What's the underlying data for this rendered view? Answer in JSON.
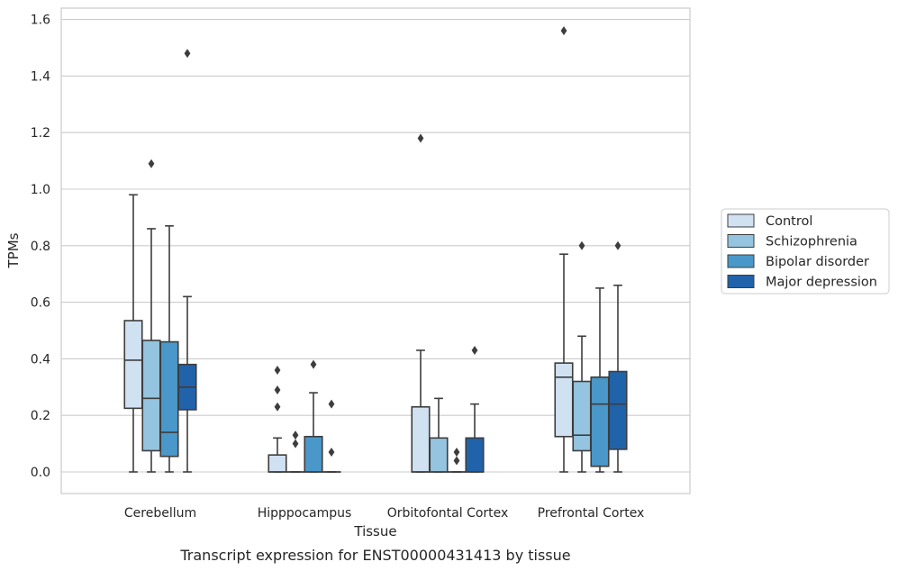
{
  "caption": "Transcript expression for ENST00000431413 by tissue",
  "chart_data": {
    "type": "boxplot",
    "xlabel": "Tissue",
    "ylabel": "TPMs",
    "ylim": [
      -0.075,
      1.645
    ],
    "yticks": [
      0.0,
      0.2,
      0.4,
      0.6,
      0.8,
      1.0,
      1.2,
      1.4,
      1.6
    ],
    "ytick_labels": [
      "0.0",
      "0.2",
      "0.4",
      "0.6",
      "0.8",
      "1.0",
      "1.2",
      "1.4",
      "1.6"
    ],
    "grid": "horizontal",
    "legend_position": "right, outside plot",
    "categories": [
      "Cerebellum",
      "Hipppocampus",
      "Orbitofontal Cortex",
      "Prefrontal Cortex"
    ],
    "series": [
      {
        "name": "Control",
        "color": "#d0e1f2",
        "boxes": [
          {
            "whislo": 0.0,
            "q1": 0.225,
            "med": 0.395,
            "q3": 0.535,
            "whishi": 0.98,
            "fliers": []
          },
          {
            "whislo": 0.0,
            "q1": 0.0,
            "med": 0.0,
            "q3": 0.06,
            "whishi": 0.12,
            "fliers": [
              0.23,
              0.29,
              0.36
            ]
          },
          {
            "whislo": 0.0,
            "q1": 0.0,
            "med": 0.0,
            "q3": 0.23,
            "whishi": 0.43,
            "fliers": [
              1.18
            ]
          },
          {
            "whislo": 0.0,
            "q1": 0.125,
            "med": 0.335,
            "q3": 0.385,
            "whishi": 0.77,
            "fliers": [
              1.56
            ]
          }
        ]
      },
      {
        "name": "Schizophrenia",
        "color": "#94c4df",
        "boxes": [
          {
            "whislo": 0.0,
            "q1": 0.075,
            "med": 0.26,
            "q3": 0.465,
            "whishi": 0.86,
            "fliers": [
              1.09
            ]
          },
          {
            "whislo": 0.0,
            "q1": 0.0,
            "med": 0.0,
            "q3": 0.0,
            "whishi": 0.0,
            "fliers": [
              0.1,
              0.13
            ]
          },
          {
            "whislo": 0.0,
            "q1": 0.0,
            "med": 0.0,
            "q3": 0.12,
            "whishi": 0.26,
            "fliers": []
          },
          {
            "whislo": 0.0,
            "q1": 0.075,
            "med": 0.13,
            "q3": 0.32,
            "whishi": 0.48,
            "fliers": [
              0.8
            ]
          }
        ]
      },
      {
        "name": "Bipolar disorder",
        "color": "#4a98c9",
        "boxes": [
          {
            "whislo": 0.0,
            "q1": 0.055,
            "med": 0.14,
            "q3": 0.46,
            "whishi": 0.87,
            "fliers": []
          },
          {
            "whislo": 0.0,
            "q1": 0.0,
            "med": 0.0,
            "q3": 0.125,
            "whishi": 0.28,
            "fliers": [
              0.38
            ]
          },
          {
            "whislo": 0.0,
            "q1": 0.0,
            "med": 0.0,
            "q3": 0.0,
            "whishi": 0.0,
            "fliers": [
              0.04,
              0.07
            ]
          },
          {
            "whislo": 0.0,
            "q1": 0.02,
            "med": 0.24,
            "q3": 0.335,
            "whishi": 0.65,
            "fliers": []
          }
        ]
      },
      {
        "name": "Major depression",
        "color": "#2163aa",
        "boxes": [
          {
            "whislo": 0.0,
            "q1": 0.22,
            "med": 0.3,
            "q3": 0.38,
            "whishi": 0.62,
            "fliers": [
              1.48
            ]
          },
          {
            "whislo": 0.0,
            "q1": 0.0,
            "med": 0.0,
            "q3": 0.0,
            "whishi": 0.0,
            "fliers": [
              0.07,
              0.24
            ]
          },
          {
            "whislo": 0.0,
            "q1": 0.0,
            "med": 0.0,
            "q3": 0.12,
            "whishi": 0.24,
            "fliers": [
              0.43
            ]
          },
          {
            "whislo": 0.0,
            "q1": 0.08,
            "med": 0.24,
            "q3": 0.355,
            "whishi": 0.66,
            "fliers": [
              0.8
            ]
          }
        ]
      }
    ]
  }
}
